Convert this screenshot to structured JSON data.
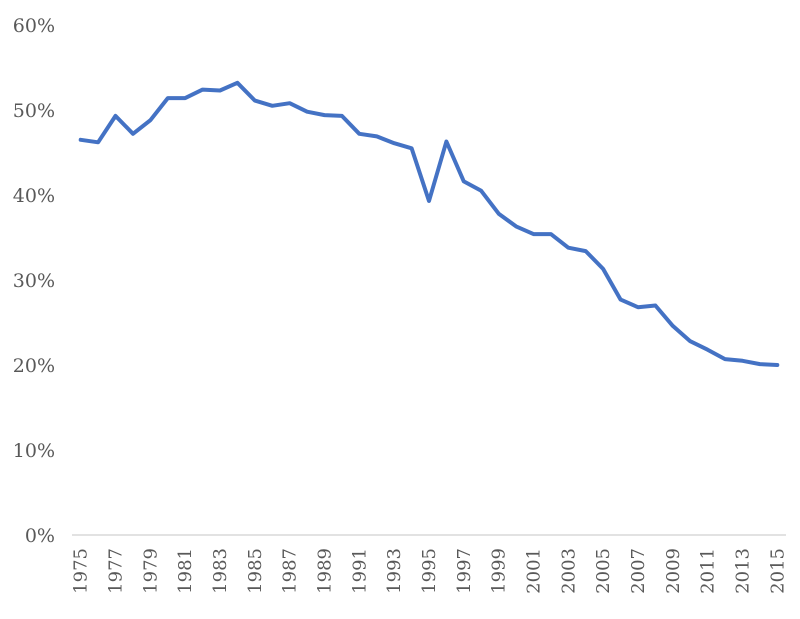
{
  "chart_data": {
    "type": "line",
    "title": "",
    "xlabel": "",
    "ylabel": "",
    "ylim": [
      0,
      60
    ],
    "y_ticks": [
      "0%",
      "10%",
      "20%",
      "30%",
      "40%",
      "50%",
      "60%"
    ],
    "y_tick_values": [
      0,
      10,
      20,
      30,
      40,
      50,
      60
    ],
    "x": [
      1975,
      1976,
      1977,
      1978,
      1979,
      1980,
      1981,
      1982,
      1983,
      1984,
      1985,
      1986,
      1987,
      1988,
      1989,
      1990,
      1991,
      1992,
      1993,
      1994,
      1995,
      1996,
      1997,
      1998,
      1999,
      2000,
      2001,
      2002,
      2003,
      2004,
      2005,
      2006,
      2007,
      2008,
      2009,
      2010,
      2011,
      2012,
      2013,
      2014,
      2015
    ],
    "x_tick_labels": [
      "1975",
      "1977",
      "1979",
      "1981",
      "1983",
      "1985",
      "1987",
      "1989",
      "1991",
      "1993",
      "1995",
      "1997",
      "1999",
      "2001",
      "2003",
      "2005",
      "2007",
      "2009",
      "2011",
      "2013",
      "2015"
    ],
    "series": [
      {
        "values": [
          46.5,
          46.2,
          49.3,
          47.2,
          48.8,
          51.4,
          51.4,
          52.4,
          52.3,
          53.2,
          51.1,
          50.5,
          50.8,
          49.8,
          49.4,
          49.3,
          47.2,
          46.9,
          46.1,
          45.5,
          39.3,
          46.3,
          41.6,
          40.5,
          37.8,
          36.3,
          35.4,
          35.4,
          33.8,
          33.4,
          31.3,
          27.7,
          26.8,
          27.0,
          24.6,
          22.8,
          21.8,
          20.7,
          20.5,
          20.1,
          20.0
        ],
        "color": "#4472C4"
      }
    ],
    "grid": false,
    "legend": "none"
  }
}
